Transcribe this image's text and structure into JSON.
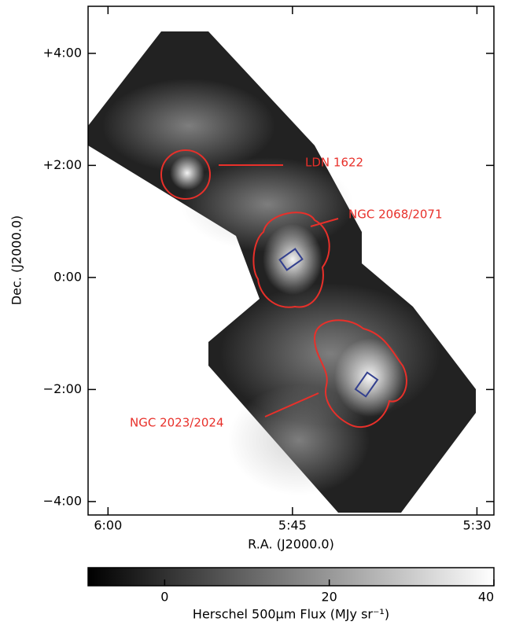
{
  "chart_data": {
    "type": "image",
    "xlabel": "R.A. (J2000.0)",
    "ylabel": "Dec. (J2000.0)",
    "xlim": [
      6.027,
      5.477
    ],
    "ylim": [
      -4.24,
      4.84
    ],
    "xticks": [
      {
        "value": 6,
        "label": "6:00"
      },
      {
        "value": 5.75,
        "label": "5:45"
      },
      {
        "value": 5.5,
        "label": "5:30"
      }
    ],
    "yticks": [
      {
        "value": 4,
        "label": "+4:00"
      },
      {
        "value": 2,
        "label": "+2:00"
      },
      {
        "value": 0,
        "label": "0:00"
      },
      {
        "value": -2,
        "label": "−2:00"
      },
      {
        "value": -4,
        "label": "−4:00"
      }
    ],
    "annotations": [
      "LDN 1622",
      "NGC 2068/2071",
      "NGC 2023/2024"
    ],
    "annotation_color": "#e8302a",
    "colorbar": {
      "label": "Herschel 500μm Flux (MJy sr⁻¹)",
      "lim": [
        -9.3,
        40
      ],
      "ticks": [
        0,
        20,
        40
      ],
      "colors": [
        "#000000",
        "#ffffff"
      ]
    }
  }
}
